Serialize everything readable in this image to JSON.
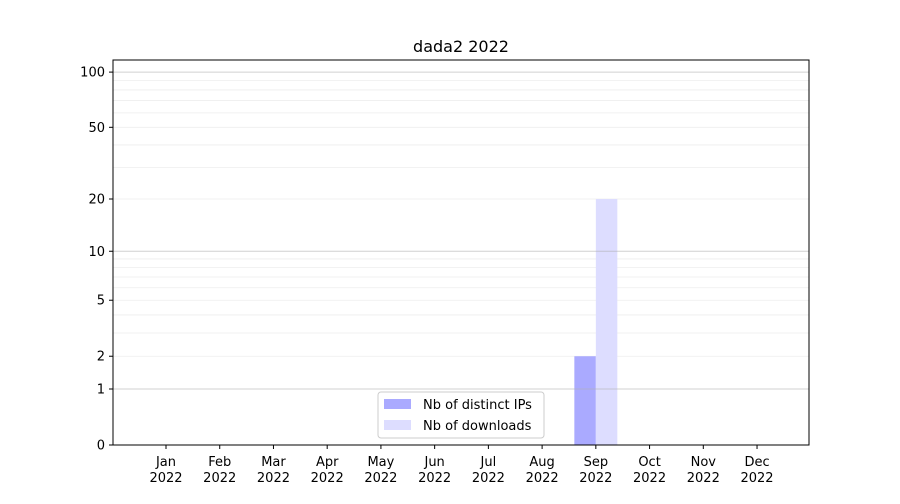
{
  "chart_data": {
    "type": "bar",
    "title": "dada2 2022",
    "xlabel": "",
    "ylabel": "",
    "yscale": "log(1+y)",
    "ylim": [
      0,
      116
    ],
    "yticks": [
      0,
      1,
      2,
      5,
      10,
      20,
      50,
      100
    ],
    "grid": true,
    "legend_position": "bottom-center",
    "categories": [
      "Jan\n2022",
      "Feb\n2022",
      "Mar\n2022",
      "Apr\n2022",
      "May\n2022",
      "Jun\n2022",
      "Jul\n2022",
      "Aug\n2022",
      "Sep\n2022",
      "Oct\n2022",
      "Nov\n2022",
      "Dec\n2022"
    ],
    "series": [
      {
        "name": "Nb of distinct IPs",
        "color": "#aaaaff",
        "values": [
          0,
          0,
          0,
          0,
          0,
          0,
          0,
          0,
          2,
          0,
          0,
          0
        ]
      },
      {
        "name": "Nb of downloads",
        "color": "#ddddff",
        "values": [
          0,
          0,
          0,
          0,
          0,
          0,
          0,
          0,
          20,
          0,
          0,
          0
        ]
      }
    ]
  }
}
